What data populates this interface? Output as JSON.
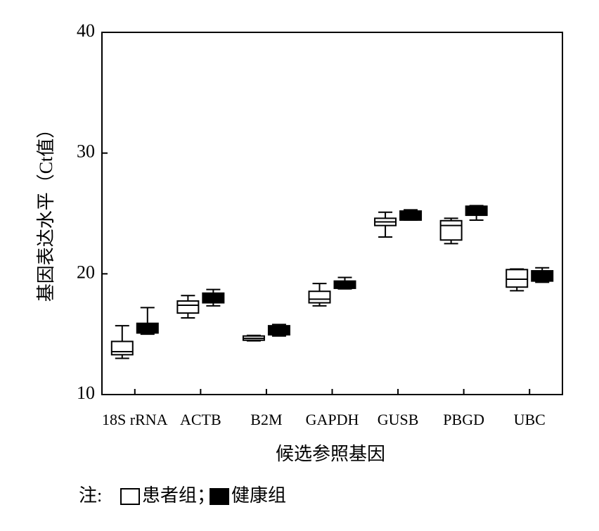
{
  "chart_data": {
    "type": "box",
    "xlabel": "候选参照基因",
    "ylabel": "基因表达水平（Ct值）",
    "categories": [
      "18S rRNA",
      "ACTB",
      "B2M",
      "GAPDH",
      "GUSB",
      "PBGD",
      "UBC"
    ],
    "ylim": [
      10,
      40
    ],
    "yticks": [
      10,
      20,
      30,
      40
    ],
    "legend_prefix": "注:",
    "legend_separator": "；",
    "series": [
      {
        "name": "患者组",
        "color": "#ffffff",
        "low": [
          13.0,
          16.35,
          14.45,
          17.35,
          23.05,
          22.5,
          18.6
        ],
        "q1": [
          13.3,
          16.75,
          14.5,
          17.6,
          24.0,
          22.8,
          18.9
        ],
        "median": [
          13.55,
          17.4,
          14.65,
          17.9,
          24.3,
          24.0,
          19.55
        ],
        "q3": [
          14.4,
          17.75,
          14.85,
          18.55,
          24.6,
          24.4,
          20.35
        ],
        "high": [
          15.7,
          18.2,
          14.9,
          19.2,
          25.1,
          24.6,
          20.4
        ]
      },
      {
        "name": "健康组",
        "color": "#000000",
        "low": [
          15.0,
          17.35,
          14.85,
          18.75,
          24.45,
          24.45,
          19.3
        ],
        "q1": [
          15.1,
          17.6,
          14.95,
          18.8,
          24.45,
          24.85,
          19.4
        ],
        "median": [
          15.5,
          18.0,
          15.3,
          19.15,
          24.9,
          25.25,
          19.85
        ],
        "q3": [
          15.9,
          18.4,
          15.7,
          19.4,
          25.2,
          25.6,
          20.25
        ],
        "high": [
          17.2,
          18.7,
          15.8,
          19.7,
          25.3,
          25.65,
          20.5
        ]
      }
    ]
  }
}
